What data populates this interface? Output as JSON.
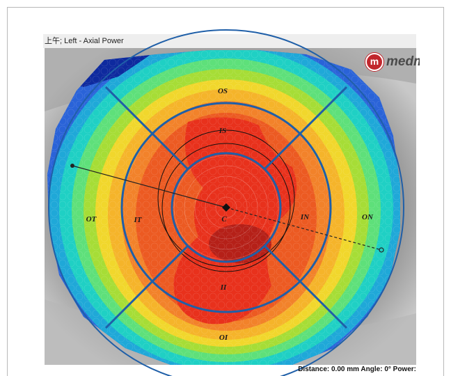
{
  "title_bar": {
    "text": "上午; Left - Axial Power"
  },
  "logo": {
    "badge": "m",
    "text": "medm"
  },
  "zones": {
    "os": "OS",
    "is": "IS",
    "ot": "OT",
    "it": "IT",
    "c": "C",
    "in": "IN",
    "on": "ON",
    "ii": "II",
    "oi": "OI"
  },
  "footer": {
    "status": "Distance: 0.00 mm Angle: 0° Power:"
  },
  "colors": {
    "ring_blue": "#1f5fa8",
    "map_red": "#e8311c",
    "map_orange": "#f2822a",
    "map_yellow": "#f1d72c",
    "map_green": "#7cd13a",
    "map_cyan": "#1fd0c4",
    "map_blue": "#2a63d8"
  }
}
